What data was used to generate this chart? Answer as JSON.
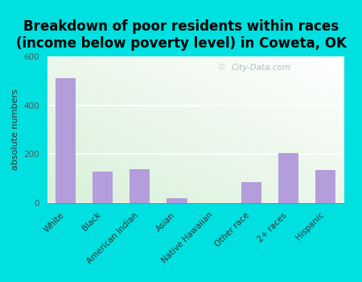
{
  "categories": [
    "White",
    "Black",
    "American Indian",
    "Asian",
    "Native Hawaiian",
    "Other race",
    "2+ races",
    "Hispanic"
  ],
  "values": [
    510,
    130,
    140,
    20,
    0,
    85,
    205,
    135
  ],
  "bar_color": "#b39ddb",
  "title": "Breakdown of poor residents within races\n(income below poverty level) in Coweta, OK",
  "ylabel": "absolute numbers",
  "ylim": [
    0,
    600
  ],
  "yticks": [
    0,
    200,
    400,
    600
  ],
  "bg_outer": "#00e0e0",
  "watermark": "City-Data.com",
  "title_fontsize": 12,
  "ylabel_fontsize": 8,
  "tick_fontsize": 7.5
}
